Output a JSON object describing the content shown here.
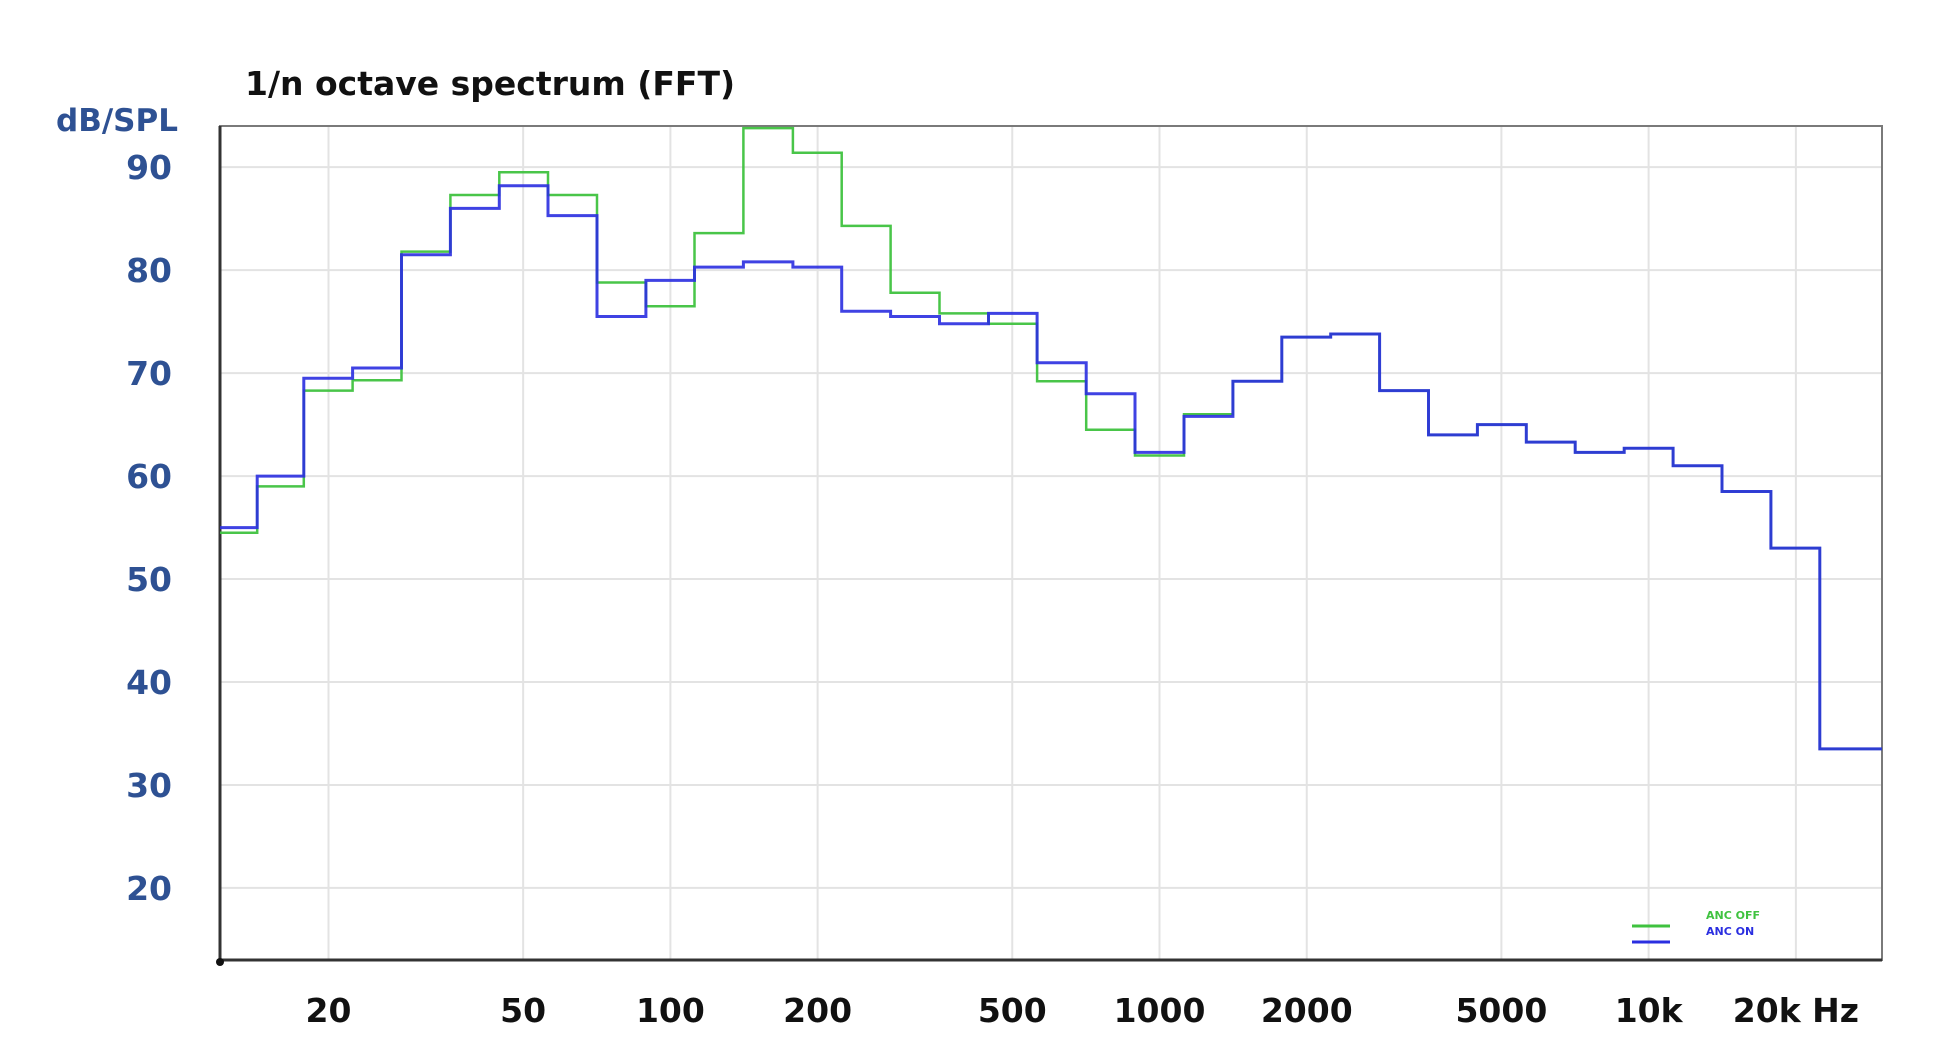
{
  "chart_data": {
    "type": "line",
    "step": true,
    "title": "1/n octave spectrum (FFT)",
    "ylabel": "dB/SPL",
    "xlabel": "",
    "xscale": "log",
    "xlim": [
      12,
      30000
    ],
    "ylim": [
      13,
      94
    ],
    "grid": true,
    "legend_position": "bottom-right",
    "y_ticks": [
      {
        "value": 20,
        "label": "20"
      },
      {
        "value": 30,
        "label": "30"
      },
      {
        "value": 40,
        "label": "40"
      },
      {
        "value": 50,
        "label": "50"
      },
      {
        "value": 60,
        "label": "60"
      },
      {
        "value": 70,
        "label": "70"
      },
      {
        "value": 80,
        "label": "80"
      },
      {
        "value": 90,
        "label": "90"
      }
    ],
    "x_ticks": [
      {
        "value": 20,
        "label": "20"
      },
      {
        "value": 50,
        "label": "50"
      },
      {
        "value": 100,
        "label": "100"
      },
      {
        "value": 200,
        "label": "200"
      },
      {
        "value": 500,
        "label": "500"
      },
      {
        "value": 1000,
        "label": "1000"
      },
      {
        "value": 2000,
        "label": "2000"
      },
      {
        "value": 5000,
        "label": "5000"
      },
      {
        "value": 10000,
        "label": "10k"
      },
      {
        "value": 20000,
        "label": "20k Hz"
      }
    ],
    "band_edges": [
      12,
      14.3,
      17.8,
      22.4,
      28.2,
      35.5,
      44.7,
      56.2,
      70.8,
      89.1,
      112,
      141,
      178,
      224,
      282,
      355,
      447,
      562,
      708,
      891,
      1122,
      1413,
      1778,
      2239,
      2818,
      3548,
      4467,
      5623,
      7079,
      8913,
      11220,
      14125,
      17783,
      22387,
      30000
    ],
    "series": [
      {
        "name": "ANC OFF",
        "color": "#3fc23f",
        "values": [
          54.5,
          59,
          68.3,
          69.3,
          81.8,
          87.3,
          89.5,
          87.3,
          78.8,
          76.5,
          83.6,
          93.8,
          91.4,
          84.3,
          77.8,
          75.8,
          74.8,
          69.2,
          64.5,
          62.0,
          66.0,
          69.2,
          73.5,
          73.8,
          68.3,
          64.0,
          65.0,
          63.3,
          62.3,
          62.7,
          61.0,
          58.5,
          53.0,
          33.5
        ]
      },
      {
        "name": "ANC ON",
        "color": "#2a2ee0",
        "values": [
          55,
          60,
          69.5,
          70.5,
          81.5,
          86,
          88.2,
          85.3,
          75.5,
          79,
          80.3,
          80.8,
          80.3,
          76,
          75.5,
          74.8,
          75.8,
          71,
          68,
          62.3,
          65.8,
          69.2,
          73.5,
          73.8,
          68.3,
          64.0,
          65.0,
          63.3,
          62.3,
          62.7,
          61.0,
          58.5,
          53.0,
          33.5
        ]
      }
    ]
  }
}
